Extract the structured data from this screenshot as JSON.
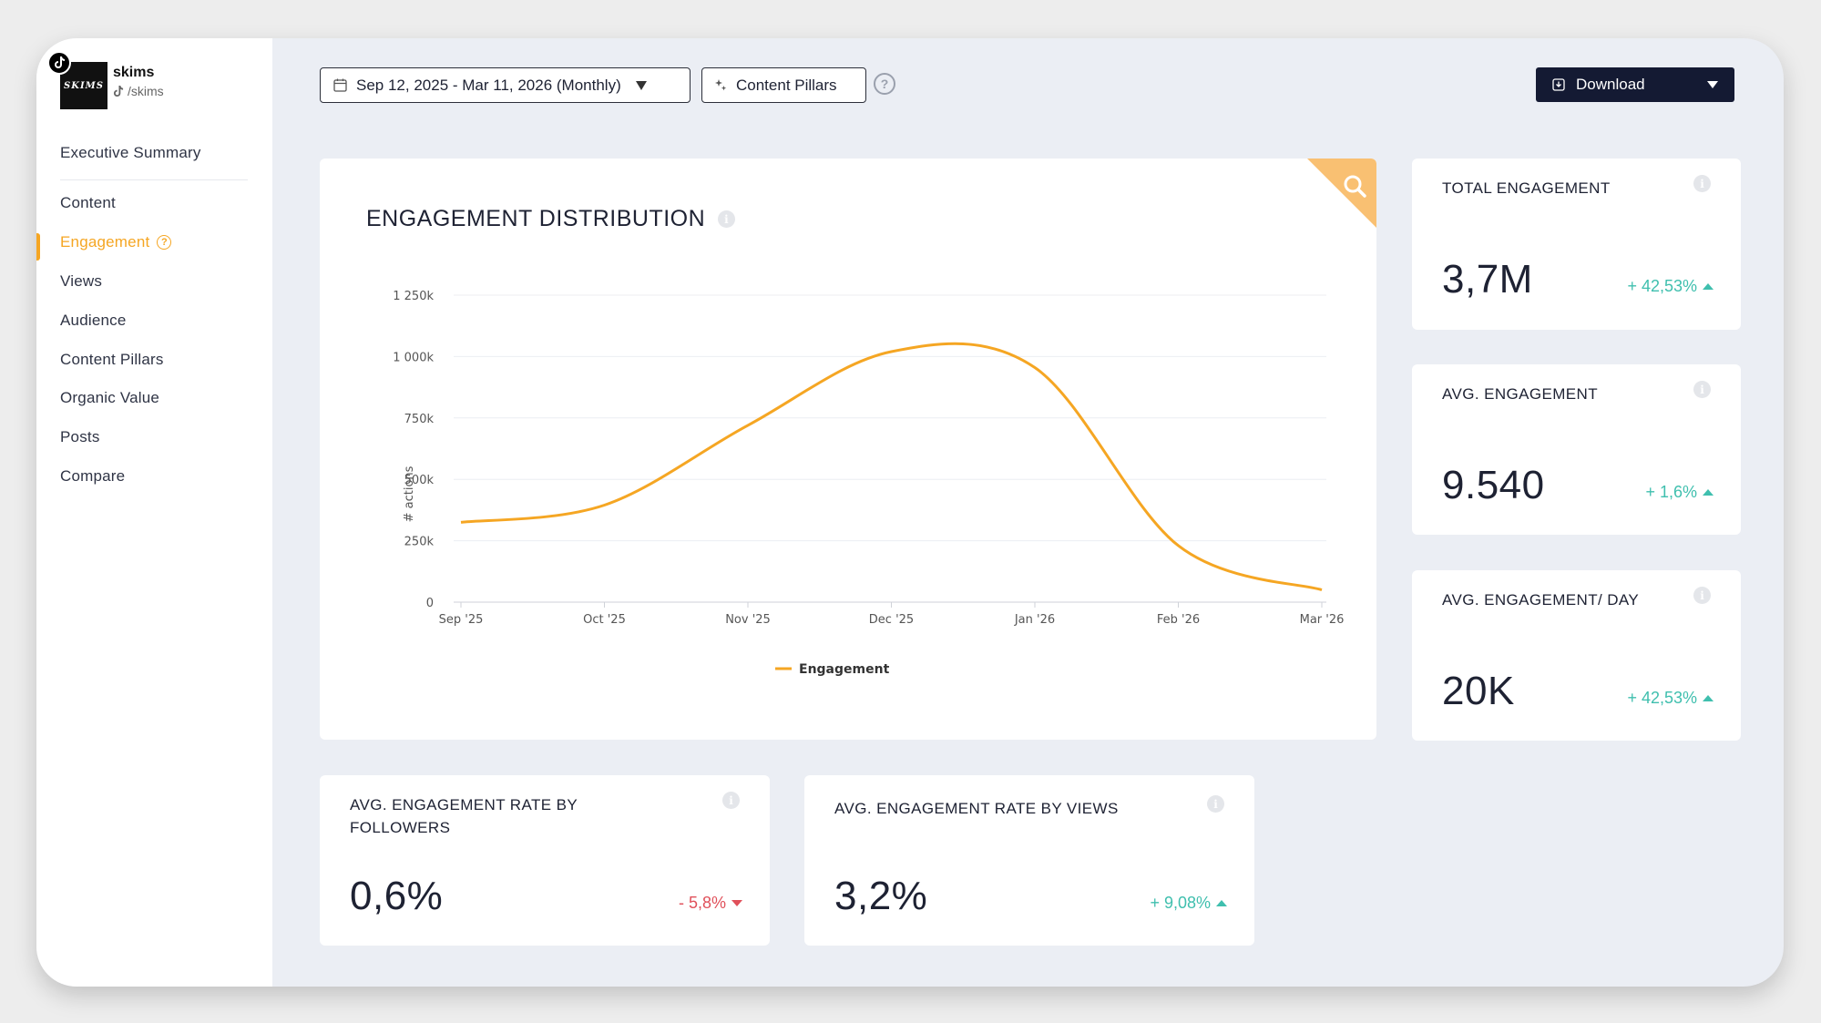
{
  "profile": {
    "name": "skims",
    "handle": "/skims",
    "logo_text": "SKIMS"
  },
  "nav": {
    "items": [
      {
        "label": "Executive Summary"
      },
      {
        "label": "Content"
      },
      {
        "label": "Engagement"
      },
      {
        "label": "Views"
      },
      {
        "label": "Audience"
      },
      {
        "label": "Content Pillars"
      },
      {
        "label": "Organic Value"
      },
      {
        "label": "Posts"
      },
      {
        "label": "Compare"
      }
    ],
    "active": "Engagement"
  },
  "toolbar": {
    "date_range": "Sep 12, 2025 - Mar 11, 2026 (Monthly)",
    "content_pillars_label": "Content Pillars",
    "download_label": "Download"
  },
  "chart": {
    "title": "ENGAGEMENT DISTRIBUTION"
  },
  "chart_data": {
    "type": "line",
    "categories": [
      "Sep '25",
      "Oct '25",
      "Nov '25",
      "Dec '25",
      "Jan '26",
      "Feb '26",
      "Mar '26"
    ],
    "series": [
      {
        "name": "Engagement",
        "values": [
          325000,
          395000,
          720000,
          1020000,
          955000,
          230000,
          50000
        ],
        "color": "#f5a623"
      }
    ],
    "ylabel": "# actions",
    "yticks": [
      "0",
      "250k",
      "500k",
      "750k",
      "1 000k",
      "1 250k"
    ],
    "ylim": [
      0,
      1250000
    ],
    "grid": true,
    "legend": "bottom"
  },
  "stats": [
    {
      "label": "TOTAL ENGAGEMENT",
      "value": "3,7M",
      "change": "+ 42,53%",
      "direction": "up"
    },
    {
      "label": "AVG. ENGAGEMENT",
      "value": "9.540",
      "change": "+ 1,6%",
      "direction": "up"
    },
    {
      "label": "AVG. ENGAGEMENT/ DAY",
      "value": "20K",
      "change": "+ 42,53%",
      "direction": "up"
    },
    {
      "label": "AVG. ENGAGEMENT RATE BY FOLLOWERS",
      "value": "0,6%",
      "change": "- 5,8%",
      "direction": "down"
    },
    {
      "label": "AVG. ENGAGEMENT RATE BY VIEWS",
      "value": "3,2%",
      "change": "+ 9,08%",
      "direction": "up"
    }
  ],
  "icons": {
    "tiktok": "tiktok-icon",
    "calendar": "calendar-icon",
    "sparkle": "sparkle-icon",
    "help": "question-icon",
    "download": "download-icon",
    "info": "info-icon",
    "search": "search-icon"
  },
  "colors": {
    "accent": "#f5a623",
    "positive": "#3fbfae",
    "negative": "#e0505a",
    "dark": "#141a33"
  }
}
